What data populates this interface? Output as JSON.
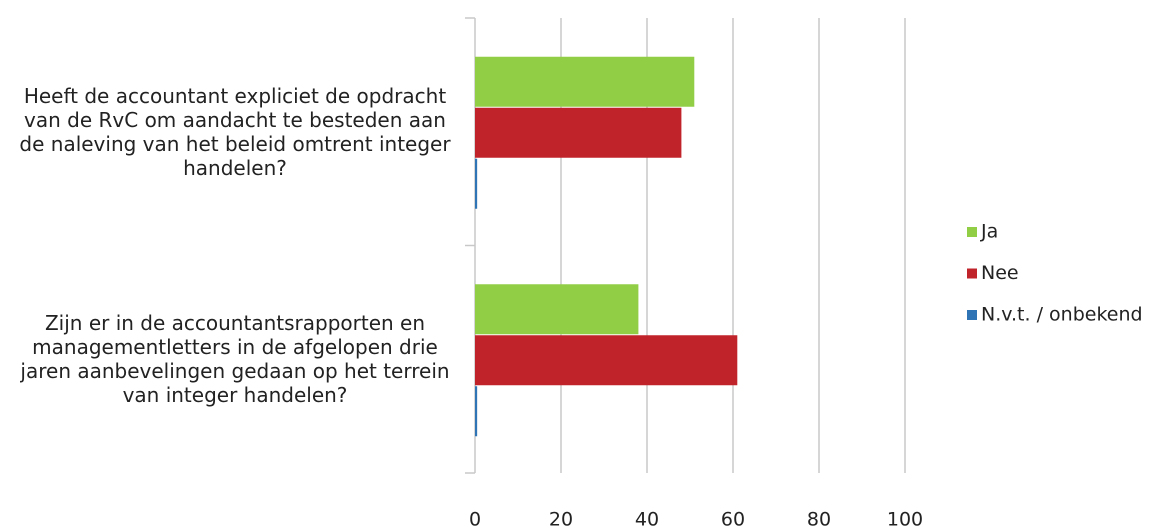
{
  "chart_data": {
    "type": "bar",
    "orientation": "horizontal",
    "categories": [
      "Heeft de accountant expliciet de opdracht van de RvC om aandacht te besteden aan de naleving van het beleid omtrent integer handelen?",
      "Zijn er in de accountantsrapporten en managementletters in de afgelopen drie jaren aanbevelingen gedaan op het terrein van integer handelen?"
    ],
    "series": [
      {
        "name": "Ja",
        "color": "#92cd46",
        "values": [
          51,
          38
        ]
      },
      {
        "name": "Nee",
        "color": "#c1232b",
        "values": [
          48,
          61
        ]
      },
      {
        "name": "N.v.t. / onbekend",
        "color": "#2f75b5",
        "values": [
          0.5,
          0.5
        ]
      }
    ],
    "xlim": [
      0,
      100
    ],
    "xticks": [
      0,
      20,
      40,
      60,
      80,
      100
    ],
    "grid": true,
    "legend": "right"
  }
}
